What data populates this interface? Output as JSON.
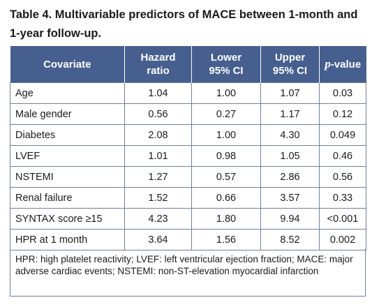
{
  "title": "Table 4. Multivariable predictors of MACE between 1-month and 1-year follow-up.",
  "header": {
    "covariate": "Covariate",
    "hazard_line1": "Hazard",
    "hazard_line2": "ratio",
    "lower_line1": "Lower",
    "lower_line2": "95% CI",
    "upper_line1": "Upper",
    "upper_line2": "95% CI",
    "p_italic": "p",
    "p_rest": "-value"
  },
  "rows": [
    {
      "covariate": "Age",
      "hr": "1.04",
      "lower": "1.00",
      "upper": "1.07",
      "p": "0.03"
    },
    {
      "covariate": "Male gender",
      "hr": "0.56",
      "lower": "0.27",
      "upper": "1.17",
      "p": "0.12"
    },
    {
      "covariate": "Diabetes",
      "hr": "2.08",
      "lower": "1.00",
      "upper": "4.30",
      "p": "0.049"
    },
    {
      "covariate": "LVEF",
      "hr": "1.01",
      "lower": "0.98",
      "upper": "1.05",
      "p": "0.46"
    },
    {
      "covariate": "NSTEMI",
      "hr": "1.27",
      "lower": "0.57",
      "upper": "2.86",
      "p": "0.56"
    },
    {
      "covariate": "Renal failure",
      "hr": "1.52",
      "lower": "0.66",
      "upper": "3.57",
      "p": "0.33"
    },
    {
      "covariate": "SYNTAX score ≥15",
      "hr": "4.23",
      "lower": "1.80",
      "upper": "9.94",
      "p": "<0.001"
    },
    {
      "covariate": "HPR at 1 month",
      "hr": "3.64",
      "lower": "1.56",
      "upper": "8.52",
      "p": "0.002"
    }
  ],
  "footnote": "HPR: high platelet reactivity; LVEF: left ventricular ejection fraction; MACE: major adverse cardiac events; NSTEMI: non-ST-elevation myocardial infarction",
  "colors": {
    "header_bg": "#465f8f",
    "border": "#6f7f9f"
  }
}
